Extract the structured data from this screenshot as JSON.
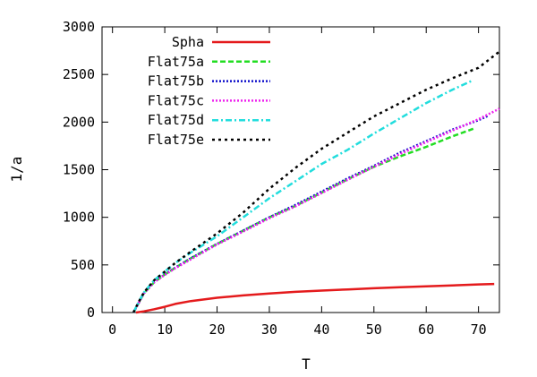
{
  "chart_data": {
    "type": "line",
    "title": "",
    "xlabel": "T",
    "ylabel": "1/a",
    "xlim": [
      -2,
      74
    ],
    "ylim": [
      0,
      3000
    ],
    "xticks": [
      0,
      10,
      20,
      30,
      40,
      50,
      60,
      70
    ],
    "yticks": [
      0,
      500,
      1000,
      1500,
      2000,
      2500,
      3000
    ],
    "grid": false,
    "legend_position": "top-left",
    "series": [
      {
        "name": "Spha",
        "color": "#e41a1c",
        "dash": "solid",
        "x": [
          4.5,
          6,
          8,
          10,
          12,
          15,
          20,
          25,
          30,
          35,
          40,
          45,
          50,
          55,
          60,
          65,
          70,
          73
        ],
        "y": [
          0,
          12,
          35,
          60,
          90,
          120,
          155,
          180,
          200,
          217,
          230,
          243,
          255,
          265,
          275,
          285,
          295,
          300
        ]
      },
      {
        "name": "Flat75a",
        "color": "#22dd22",
        "dash": "dashed",
        "x": [
          4,
          5,
          6,
          8,
          10,
          12,
          15,
          20,
          25,
          30,
          35,
          40,
          45,
          50,
          55,
          60,
          65,
          69
        ],
        "y": [
          0,
          100,
          200,
          320,
          400,
          470,
          570,
          720,
          860,
          1000,
          1120,
          1260,
          1400,
          1530,
          1640,
          1740,
          1850,
          1930
        ]
      },
      {
        "name": "Flat75b",
        "color": "#1111cc",
        "dash": "dotted",
        "x": [
          4,
          5,
          6,
          8,
          10,
          12,
          15,
          20,
          25,
          30,
          35,
          40,
          45,
          50,
          55,
          60,
          65,
          70,
          72
        ],
        "y": [
          0,
          100,
          200,
          320,
          400,
          470,
          570,
          720,
          860,
          1000,
          1130,
          1270,
          1410,
          1540,
          1680,
          1800,
          1920,
          2020,
          2070
        ]
      },
      {
        "name": "Flat75c",
        "color": "#ee22ee",
        "dash": "dotted",
        "x": [
          4,
          5,
          6,
          8,
          10,
          12,
          15,
          20,
          25,
          30,
          35,
          40,
          45,
          50,
          55,
          60,
          65,
          70,
          74
        ],
        "y": [
          0,
          100,
          200,
          320,
          395,
          465,
          560,
          715,
          850,
          990,
          1115,
          1255,
          1395,
          1530,
          1665,
          1790,
          1910,
          2030,
          2140
        ]
      },
      {
        "name": "Flat75d",
        "color": "#22dddd",
        "dash": "dashdot",
        "x": [
          4,
          5,
          6,
          8,
          10,
          12,
          15,
          20,
          25,
          30,
          35,
          40,
          45,
          50,
          55,
          60,
          65,
          69
        ],
        "y": [
          0,
          110,
          210,
          340,
          430,
          520,
          630,
          800,
          1000,
          1200,
          1380,
          1560,
          1710,
          1880,
          2040,
          2200,
          2340,
          2440
        ]
      },
      {
        "name": "Flat75e",
        "color": "#000000",
        "dash": "dotted-wide",
        "x": [
          4,
          5,
          6,
          8,
          10,
          12,
          15,
          20,
          25,
          30,
          35,
          40,
          45,
          50,
          55,
          60,
          65,
          70,
          74
        ],
        "y": [
          0,
          110,
          210,
          340,
          430,
          520,
          640,
          830,
          1050,
          1300,
          1520,
          1720,
          1890,
          2060,
          2200,
          2340,
          2460,
          2570,
          2740
        ]
      }
    ]
  }
}
